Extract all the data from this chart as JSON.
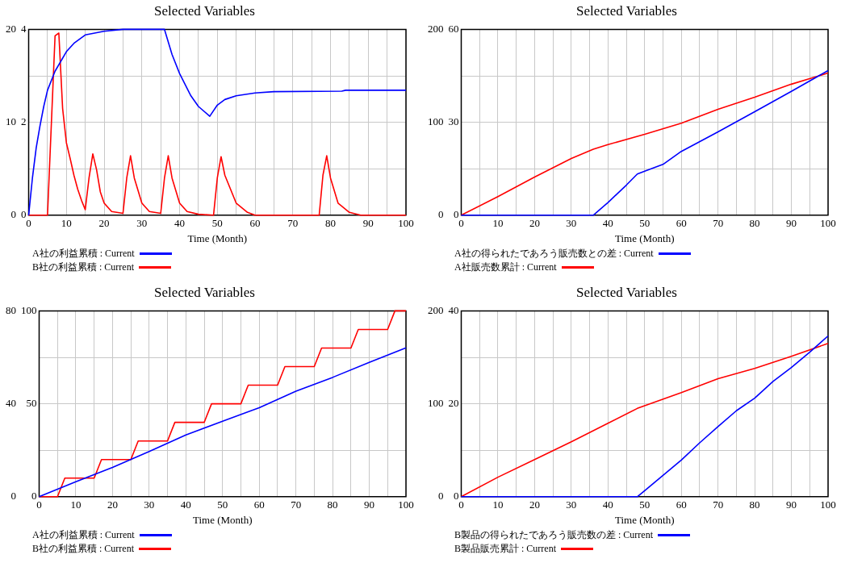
{
  "chart_data": [
    {
      "type": "line",
      "title": "Selected Variables",
      "xlabel": "Time (Month)",
      "xlim": [
        0,
        100
      ],
      "xticks": [
        0,
        {
          "value": 5,
          "label": null
        },
        10,
        {
          "value": 15,
          "label": null
        },
        20,
        {
          "value": 25,
          "label": null
        },
        30,
        {
          "value": 35,
          "label": null
        },
        40,
        {
          "value": 45,
          "label": null
        },
        50,
        {
          "value": 55,
          "label": null
        },
        60,
        {
          "value": 65,
          "label": null
        },
        70,
        {
          "value": 75,
          "label": null
        },
        80,
        {
          "value": 85,
          "label": null
        },
        90,
        {
          "value": 95,
          "label": null
        },
        100
      ],
      "ylim": [
        0,
        4
      ],
      "yticks": [
        0,
        {
          "value": 1,
          "label": null
        },
        2,
        {
          "value": 3,
          "label": null
        },
        4
      ],
      "y2lim": [
        0,
        20
      ],
      "y2ticks": [
        0,
        10,
        20
      ],
      "grid": true,
      "legend": "bottom",
      "series": [
        {
          "name": "A社の利益累積 : Current",
          "color": "#0000ff",
          "x": [
            0,
            1,
            2,
            3,
            4,
            5,
            7,
            10,
            12,
            15,
            20,
            25,
            36,
            38,
            40,
            43,
            45,
            48,
            50,
            52,
            55,
            60,
            65,
            83,
            84,
            100
          ],
          "values": [
            0,
            0.8,
            1.45,
            1.92,
            2.34,
            2.69,
            3.1,
            3.52,
            3.7,
            3.88,
            3.96,
            4,
            4,
            3.46,
            3.05,
            2.57,
            2.34,
            2.13,
            2.37,
            2.49,
            2.57,
            2.63,
            2.66,
            2.67,
            2.69,
            2.69
          ]
        },
        {
          "name": "B社の利益累積 : Current",
          "color": "#ff0000",
          "axis": "y2",
          "x": [
            0,
            5,
            7,
            8,
            9,
            10,
            11,
            12,
            13,
            14,
            15,
            16,
            17,
            18,
            19,
            20,
            22,
            25,
            26,
            27,
            28,
            30,
            32,
            35,
            36,
            37,
            38,
            40,
            42,
            45,
            49,
            50,
            51,
            52,
            55,
            58,
            60,
            77,
            78,
            79,
            80,
            82,
            85,
            88,
            100
          ],
          "values": [
            0,
            0,
            19.3,
            19.6,
            11.5,
            7.8,
            6.1,
            4.3,
            2.8,
            1.6,
            0.6,
            4,
            6.6,
            4.9,
            2.5,
            1.3,
            0.4,
            0.2,
            4,
            6.4,
            4,
            1.3,
            0.4,
            0.2,
            4,
            6.4,
            4,
            1.3,
            0.4,
            0.1,
            0,
            4,
            6.3,
            4.3,
            1.3,
            0.3,
            0,
            0,
            4.3,
            6.4,
            4,
            1.3,
            0.3,
            0,
            0
          ]
        }
      ]
    },
    {
      "type": "line",
      "title": "Selected Variables",
      "xlabel": "Time (Month)",
      "xlim": [
        0,
        100
      ],
      "xticks": [
        0,
        {
          "value": 5,
          "label": null
        },
        10,
        {
          "value": 15,
          "label": null
        },
        20,
        {
          "value": 25,
          "label": null
        },
        30,
        {
          "value": 35,
          "label": null
        },
        40,
        {
          "value": 45,
          "label": null
        },
        50,
        {
          "value": 55,
          "label": null
        },
        60,
        {
          "value": 65,
          "label": null
        },
        70,
        {
          "value": 75,
          "label": null
        },
        80,
        {
          "value": 85,
          "label": null
        },
        90,
        {
          "value": 95,
          "label": null
        },
        100
      ],
      "ylim": [
        0,
        60
      ],
      "yticks": [
        0,
        {
          "value": 15,
          "label": null
        },
        30,
        {
          "value": 45,
          "label": null
        },
        60
      ],
      "y2lim": [
        0,
        200
      ],
      "y2ticks": [
        0,
        100,
        200
      ],
      "grid": true,
      "legend": "bottom",
      "series": [
        {
          "name": "A社の得られたであろう販売数との差 : Current",
          "color": "#0000ff",
          "x": [
            0,
            36,
            40,
            45,
            48,
            50,
            55,
            60,
            70,
            80,
            90,
            100
          ],
          "values": [
            0,
            0,
            4.1,
            9.7,
            13.3,
            14.2,
            16.4,
            20.6,
            26.9,
            33.4,
            40,
            46.7
          ]
        },
        {
          "name": "A社販売数累計 : Current",
          "color": "#ff0000",
          "axis": "y2",
          "x": [
            0,
            10,
            20,
            30,
            36,
            40,
            50,
            60,
            70,
            80,
            90,
            100
          ],
          "values": [
            0,
            20,
            41,
            61,
            71,
            76,
            87,
            99,
            114,
            127,
            141,
            153
          ]
        }
      ]
    },
    {
      "type": "line",
      "title": "Selected Variables",
      "xlabel": "Time (Month)",
      "xlim": [
        0,
        100
      ],
      "xticks": [
        0,
        {
          "value": 5,
          "label": null
        },
        10,
        {
          "value": 15,
          "label": null
        },
        20,
        {
          "value": 25,
          "label": null
        },
        30,
        {
          "value": 35,
          "label": null
        },
        40,
        {
          "value": 45,
          "label": null
        },
        50,
        {
          "value": 55,
          "label": null
        },
        60,
        {
          "value": 65,
          "label": null
        },
        70,
        {
          "value": 75,
          "label": null
        },
        80,
        {
          "value": 85,
          "label": null
        },
        90,
        {
          "value": 95,
          "label": null
        },
        100
      ],
      "ylim": [
        0,
        100
      ],
      "yticks": [
        0,
        {
          "value": 25,
          "label": null
        },
        50,
        {
          "value": 75,
          "label": null
        },
        100
      ],
      "y2lim": [
        0,
        80
      ],
      "y2ticks": [
        0,
        40,
        80
      ],
      "grid": true,
      "legend": "bottom",
      "series": [
        {
          "name": "A社の利益累積 : Current",
          "color": "#0000ff",
          "x": [
            0,
            10,
            20,
            30,
            40,
            50,
            60,
            70,
            80,
            90,
            100
          ],
          "values": [
            0,
            8.1,
            15.8,
            24.3,
            33.2,
            40.6,
            47.9,
            56.8,
            64.2,
            72.3,
            80.1
          ]
        },
        {
          "name": "B社の利益累積 : Current",
          "color": "#ff0000",
          "axis": "y2",
          "x": [
            0,
            5,
            7,
            15,
            17,
            25,
            27,
            35,
            37,
            45,
            47,
            55,
            57,
            65,
            67,
            75,
            77,
            85,
            87,
            95,
            97,
            100
          ],
          "values": [
            0,
            0,
            8,
            8,
            16,
            16,
            24,
            24,
            32,
            32,
            40,
            40,
            48,
            48,
            56,
            56,
            64,
            64,
            72,
            72,
            80,
            80
          ]
        }
      ]
    },
    {
      "type": "line",
      "title": "Selected Variables",
      "xlabel": "Time (Month)",
      "xlim": [
        0,
        100
      ],
      "xticks": [
        0,
        {
          "value": 5,
          "label": null
        },
        10,
        {
          "value": 15,
          "label": null
        },
        20,
        {
          "value": 25,
          "label": null
        },
        30,
        {
          "value": 35,
          "label": null
        },
        40,
        {
          "value": 45,
          "label": null
        },
        50,
        {
          "value": 55,
          "label": null
        },
        60,
        {
          "value": 65,
          "label": null
        },
        70,
        {
          "value": 75,
          "label": null
        },
        80,
        {
          "value": 85,
          "label": null
        },
        90,
        {
          "value": 95,
          "label": null
        },
        100
      ],
      "ylim": [
        0,
        40
      ],
      "yticks": [
        0,
        {
          "value": 10,
          "label": null
        },
        20,
        {
          "value": 30,
          "label": null
        },
        40
      ],
      "y2lim": [
        0,
        200
      ],
      "y2ticks": [
        0,
        100,
        200
      ],
      "grid": true,
      "legend": "bottom",
      "series": [
        {
          "name": "B製品の得られたであろう販売数の差 : Current",
          "color": "#0000ff",
          "x": [
            0,
            48,
            50,
            55,
            60,
            65,
            70,
            75,
            80,
            85,
            90,
            95,
            100
          ],
          "values": [
            0,
            0,
            1.3,
            4.6,
            7.9,
            11.6,
            15.1,
            18.5,
            21.2,
            24.8,
            27.8,
            31.1,
            34.6
          ]
        },
        {
          "name": "B製品販売累計 : Current",
          "color": "#ff0000",
          "axis": "y2",
          "x": [
            0,
            10,
            20,
            30,
            40,
            48,
            50,
            60,
            70,
            80,
            90,
            100
          ],
          "values": [
            0,
            21,
            40,
            59,
            79,
            95,
            98,
            112,
            127,
            138,
            151,
            165
          ]
        }
      ]
    }
  ]
}
